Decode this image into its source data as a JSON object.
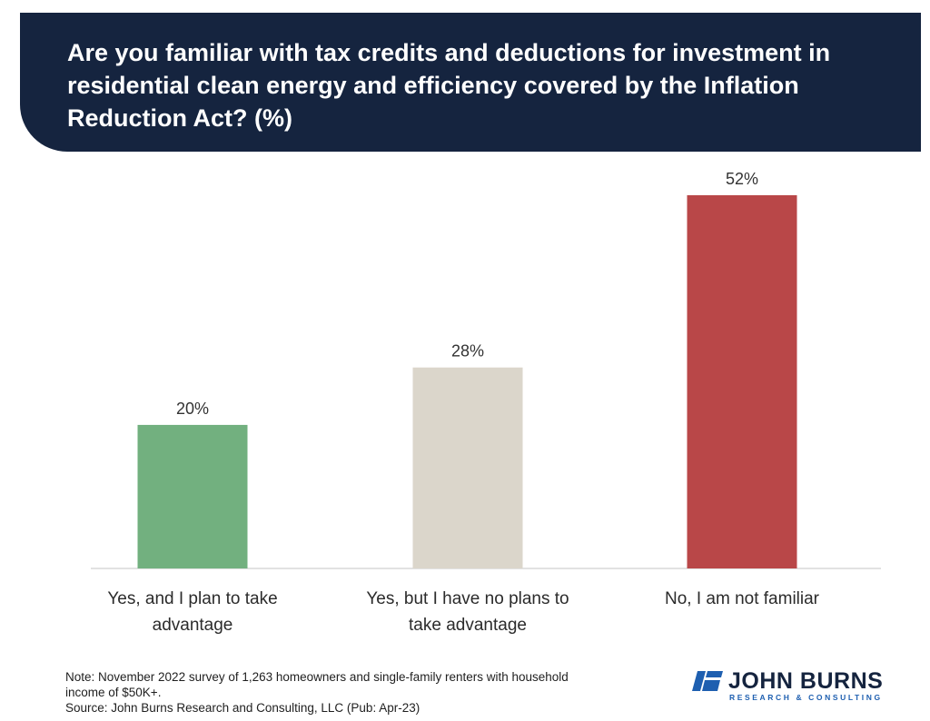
{
  "colors": {
    "banner": "#15243f",
    "bar_yes_plan": "#72b07f",
    "bar_yes_no_plan": "#dbd6cb",
    "bar_not_familiar": "#b94748",
    "logo_blue": "#1e5fb0"
  },
  "chart_data": {
    "type": "bar",
    "title": "Are you familiar with tax credits and deductions for investment in residential clean energy and efficiency covered by the Inflation Reduction Act? (%)",
    "categories": [
      [
        "Yes, and I plan to take",
        "advantage"
      ],
      [
        "Yes, but I have no plans to",
        "take advantage"
      ],
      [
        "No, I am not familiar"
      ]
    ],
    "values": [
      20,
      28,
      52
    ],
    "value_labels": [
      "20%",
      "28%",
      "52%"
    ],
    "bar_colors": [
      "#72b07f",
      "#dbd6cb",
      "#b94748"
    ],
    "ylim": [
      0,
      52
    ],
    "grid": false,
    "xlabel": "",
    "ylabel": ""
  },
  "footer": {
    "note_line1": "Note: November 2022 survey of 1,263 homeowners and single-family renters with household",
    "note_line2": "income of $50K+.",
    "source": "Source: John Burns Research and Consulting, LLC (Pub: Apr-23)"
  },
  "logo": {
    "icon": "jbrc-slash-logo-icon",
    "name": "JOHN BURNS",
    "tagline": "RESEARCH & CONSULTING"
  }
}
